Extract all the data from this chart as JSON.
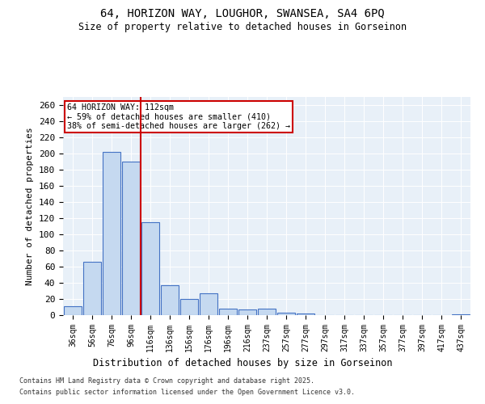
{
  "title_line1": "64, HORIZON WAY, LOUGHOR, SWANSEA, SA4 6PQ",
  "title_line2": "Size of property relative to detached houses in Gorseinon",
  "xlabel": "Distribution of detached houses by size in Gorseinon",
  "ylabel": "Number of detached properties",
  "categories": [
    "36sqm",
    "56sqm",
    "76sqm",
    "96sqm",
    "116sqm",
    "136sqm",
    "156sqm",
    "176sqm",
    "196sqm",
    "216sqm",
    "237sqm",
    "257sqm",
    "277sqm",
    "297sqm",
    "317sqm",
    "337sqm",
    "357sqm",
    "377sqm",
    "397sqm",
    "417sqm",
    "437sqm"
  ],
  "values": [
    11,
    66,
    202,
    190,
    115,
    37,
    20,
    27,
    8,
    7,
    8,
    3,
    2,
    0,
    0,
    0,
    0,
    0,
    0,
    0,
    1
  ],
  "bar_color": "#c5d9f0",
  "bar_edge_color": "#4472c4",
  "marker_label": "64 HORIZON WAY: 112sqm",
  "annotation_line2": "← 59% of detached houses are smaller (410)",
  "annotation_line3": "38% of semi-detached houses are larger (262) →",
  "annotation_box_color": "#ffffff",
  "annotation_border_color": "#cc0000",
  "ylim": [
    0,
    270
  ],
  "yticks": [
    0,
    20,
    40,
    60,
    80,
    100,
    120,
    140,
    160,
    180,
    200,
    220,
    240,
    260
  ],
  "footnote_line1": "Contains HM Land Registry data © Crown copyright and database right 2025.",
  "footnote_line2": "Contains public sector information licensed under the Open Government Licence v3.0.",
  "bg_color": "#e8f0f8",
  "fig_bg_color": "#ffffff"
}
